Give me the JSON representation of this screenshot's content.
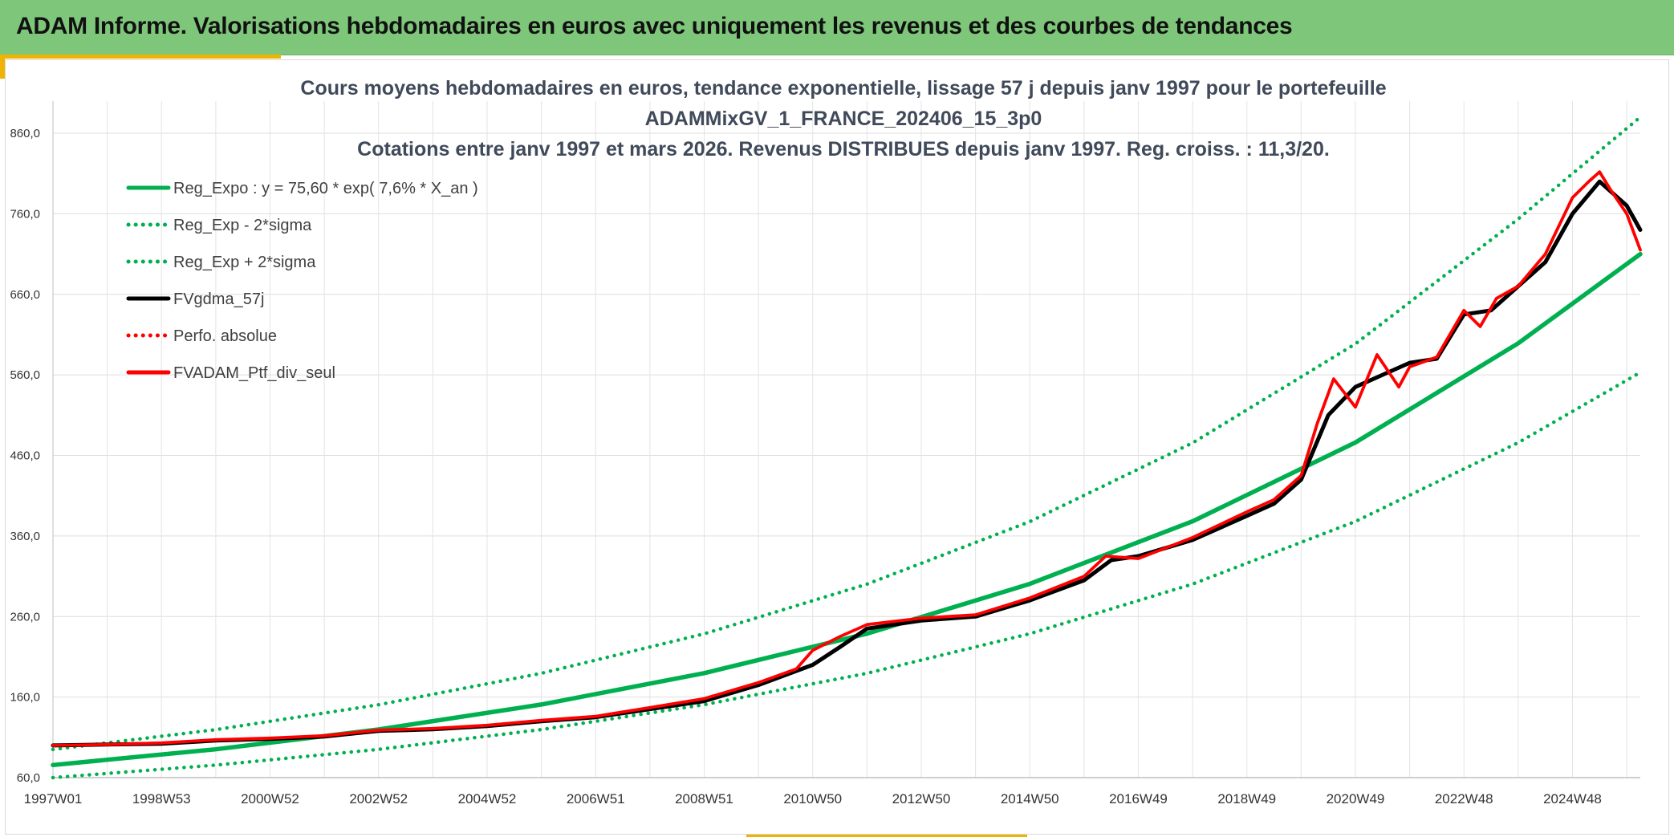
{
  "header": {
    "title": "ADAM Informe. Valorisations hebdomadaires en euros avec uniquement les revenus et des courbes de tendances"
  },
  "colors": {
    "header_bg": "#7ec77a",
    "accent": "#f0b400",
    "green": "#00b050",
    "red": "#ff0000",
    "black": "#000000"
  },
  "chart_data": {
    "type": "line",
    "title": [
      "Cours moyens hebdomadaires en euros, tendance exponentielle, lissage 57 j depuis janv 1997 pour le portefeuille",
      "ADAMMixGV_1_FRANCE_202406_15_3p0",
      "Cotations entre janv 1997 et mars 2026. Revenus DISTRIBUES depuis janv 1997. Reg. croiss. : 11,3/20."
    ],
    "xlabel": "",
    "ylabel": "",
    "x_range": [
      1997.0,
      2026.25
    ],
    "ylim": [
      60,
      860
    ],
    "y_ticks": [
      "60,0",
      "160,0",
      "260,0",
      "360,0",
      "460,0",
      "560,0",
      "660,0",
      "760,0",
      "860,0"
    ],
    "x_tick_labels": [
      "1997W01",
      "1998W53",
      "2000W52",
      "2002W52",
      "2004W52",
      "2006W51",
      "2008W51",
      "2010W50",
      "2012W50",
      "2014W50",
      "2016W49",
      "2018W49",
      "2020W49",
      "2022W48",
      "2024W48"
    ],
    "grid": true,
    "legend_position": "top-left",
    "legend": [
      {
        "label": "Reg_Expo : y = 75,60 * exp( 7,6% *  X_an )",
        "color": "#00b050",
        "style": "solid"
      },
      {
        "label": "Reg_Exp - 2*sigma",
        "color": "#00b050",
        "style": "dotted"
      },
      {
        "label": "Reg_Exp + 2*sigma",
        "color": "#00b050",
        "style": "dotted"
      },
      {
        "label": "FVgdma_57j",
        "color": "#000000",
        "style": "solid"
      },
      {
        "label": "Perfo. absolue",
        "color": "#ff0000",
        "style": "dotted"
      },
      {
        "label": "FVADAM_Ptf_div_seul",
        "color": "#ff0000",
        "style": "solid"
      }
    ],
    "series": [
      {
        "name": "Reg_Expo : y = 75,60 * exp( 7,6% *  X_an )",
        "x": [
          1997.0,
          2000.0,
          2003.0,
          2006.0,
          2009.0,
          2012.0,
          2015.0,
          2018.0,
          2021.0,
          2024.0,
          2026.25
        ],
        "values": [
          75.6,
          95.2,
          119.8,
          150.8,
          189.7,
          238.7,
          300.5,
          378.2,
          476.0,
          599.2,
          710.0
        ]
      },
      {
        "name": "Reg_Exp - 2*sigma",
        "x": [
          1997.0,
          2000.0,
          2003.0,
          2006.0,
          2009.0,
          2012.0,
          2015.0,
          2018.0,
          2021.0,
          2024.0,
          2026.25
        ],
        "values": [
          60.0,
          75.5,
          95.1,
          119.7,
          150.6,
          189.5,
          238.6,
          300.3,
          378.0,
          475.8,
          563.0
        ]
      },
      {
        "name": "Reg_Exp + 2*sigma",
        "x": [
          1997.0,
          2000.0,
          2003.0,
          2006.0,
          2009.0,
          2012.0,
          2015.0,
          2018.0,
          2021.0,
          2024.0,
          2026.25
        ],
        "values": [
          95.0,
          119.6,
          150.5,
          189.5,
          238.5,
          300.2,
          377.8,
          475.5,
          598.5,
          753.5,
          880.0
        ]
      },
      {
        "name": "FVgdma_57j",
        "x": [
          1997.0,
          1998.0,
          1999.0,
          2000.0,
          2001.0,
          2002.0,
          2003.0,
          2004.0,
          2005.0,
          2006.0,
          2007.0,
          2008.0,
          2009.0,
          2010.0,
          2011.0,
          2011.5,
          2012.0,
          2013.0,
          2014.0,
          2015.0,
          2016.0,
          2016.5,
          2017.0,
          2018.0,
          2019.0,
          2019.5,
          2020.0,
          2020.5,
          2021.0,
          2021.5,
          2022.0,
          2022.5,
          2023.0,
          2023.5,
          2024.0,
          2024.5,
          2025.0,
          2025.5,
          2026.0,
          2026.25
        ],
        "values": [
          100,
          101,
          102,
          106,
          108,
          111,
          118,
          120,
          124,
          130,
          135,
          145,
          155,
          175,
          200,
          222,
          245,
          255,
          260,
          280,
          305,
          330,
          335,
          355,
          385,
          400,
          430,
          510,
          545,
          560,
          575,
          580,
          635,
          640,
          670,
          700,
          760,
          800,
          770,
          740
        ]
      },
      {
        "name": "FVADAM_Ptf_div_seul",
        "x": [
          1997.0,
          1998.0,
          1999.0,
          2000.0,
          2001.0,
          2002.0,
          2003.0,
          2004.0,
          2005.0,
          2006.0,
          2007.0,
          2008.0,
          2009.0,
          2010.0,
          2010.7,
          2011.0,
          2011.5,
          2012.0,
          2013.0,
          2014.0,
          2015.0,
          2016.0,
          2016.4,
          2017.0,
          2018.0,
          2019.0,
          2019.5,
          2020.0,
          2020.3,
          2020.6,
          2021.0,
          2021.4,
          2021.8,
          2022.0,
          2022.5,
          2023.0,
          2023.3,
          2023.6,
          2024.0,
          2024.5,
          2025.0,
          2025.3,
          2025.5,
          2025.7,
          2026.0,
          2026.25
        ],
        "values": [
          100,
          101,
          103,
          107,
          109,
          112,
          119,
          121,
          125,
          131,
          136,
          147,
          158,
          178,
          195,
          218,
          235,
          250,
          258,
          262,
          283,
          310,
          335,
          332,
          358,
          390,
          405,
          435,
          500,
          555,
          520,
          585,
          545,
          570,
          582,
          640,
          620,
          655,
          670,
          710,
          780,
          800,
          812,
          790,
          760,
          715
        ]
      }
    ]
  }
}
